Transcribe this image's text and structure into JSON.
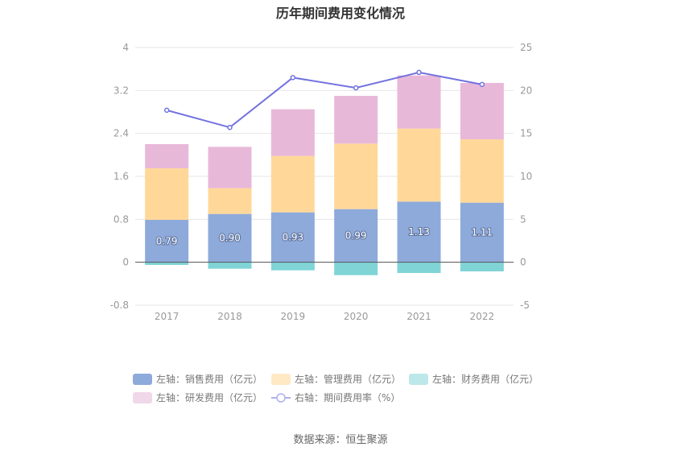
{
  "title": "历年期间费用变化情况",
  "source": "数据来源：恒生聚源",
  "colors": {
    "sales": "#8eaadb",
    "admin": "#ffd899",
    "finance": "#80d4d6",
    "rd": "#e8b8d9",
    "rate": "#7272e0",
    "legend_sales": "#8eaadb",
    "legend_admin": "#ffe9c5",
    "legend_finance": "#bde8ea",
    "legend_rd": "#f1d7ea",
    "legend_rate": "#b0b0ee"
  },
  "chart_data": {
    "type": "bar",
    "stacked": true,
    "categories": [
      "2017",
      "2018",
      "2019",
      "2020",
      "2021",
      "2022"
    ],
    "left_axis": {
      "ylim": [
        -0.8,
        4
      ],
      "ticks": [
        "4",
        "3.2",
        "2.4",
        "1.6",
        "0.8",
        "0",
        "-0.8"
      ]
    },
    "right_axis": {
      "ylim": [
        -5,
        25
      ],
      "ticks": [
        "25",
        "20",
        "15",
        "10",
        "5",
        "0",
        "-5"
      ]
    },
    "series": [
      {
        "name": "左轴：销售费用（亿元）",
        "key": "sales",
        "axis": "left",
        "type": "bar",
        "values": [
          0.79,
          0.9,
          0.93,
          0.99,
          1.13,
          1.11
        ],
        "labels": [
          "0.79",
          "0.90",
          "0.93",
          "0.99",
          "1.13",
          "1.11"
        ]
      },
      {
        "name": "左轴：管理费用（亿元）",
        "key": "admin",
        "axis": "left",
        "type": "bar",
        "values": [
          0.96,
          0.48,
          1.05,
          1.22,
          1.36,
          1.18
        ]
      },
      {
        "name": "左轴：财务费用（亿元）",
        "key": "finance",
        "axis": "left",
        "type": "bar",
        "values": [
          -0.05,
          -0.12,
          -0.15,
          -0.24,
          -0.2,
          -0.17
        ]
      },
      {
        "name": "左轴：研发费用（亿元）",
        "key": "rd",
        "axis": "left",
        "type": "bar",
        "values": [
          0.45,
          0.77,
          0.87,
          0.89,
          0.99,
          1.05
        ]
      },
      {
        "name": "右轴：期间费用率（%）",
        "key": "rate",
        "axis": "right",
        "type": "line",
        "values": [
          17.7,
          15.7,
          21.5,
          20.3,
          22.1,
          20.7
        ]
      }
    ],
    "legend_placement": "bottom"
  }
}
